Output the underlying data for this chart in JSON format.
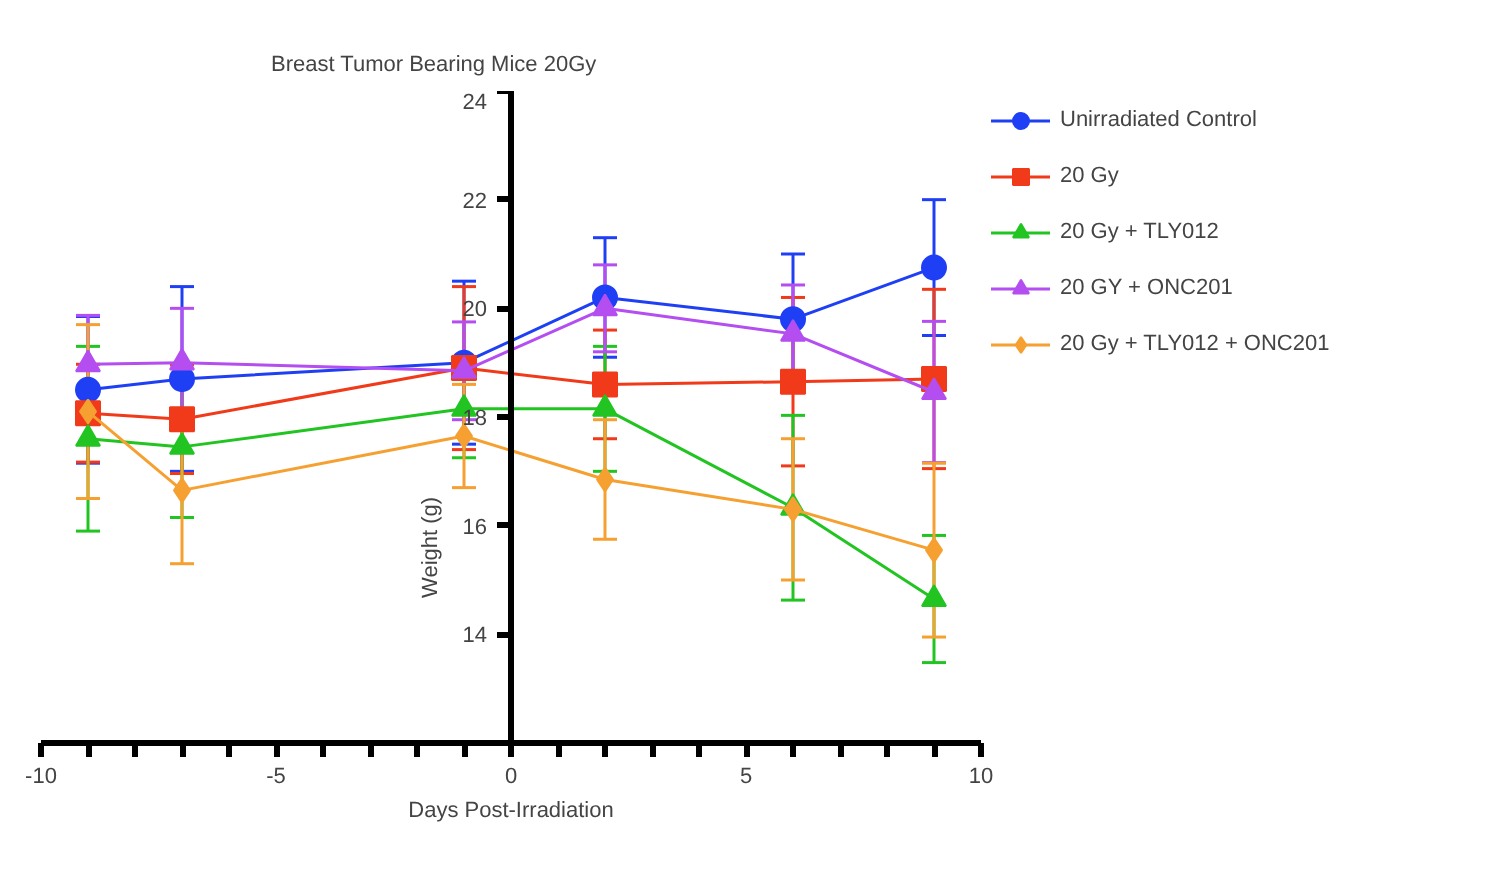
{
  "chart_data": {
    "type": "line",
    "title": "Breast Tumor Bearing Mice 20Gy",
    "xlabel": "Days Post-Irradiation",
    "ylabel": "Weight (g)",
    "x": [
      -9,
      -7,
      -1,
      2,
      6,
      9
    ],
    "series": [
      {
        "name": "Unirradiated Control",
        "color": "#1f3ff5",
        "marker": "circle",
        "values": [
          18.5,
          18.7,
          19.0,
          20.2,
          19.8,
          20.75
        ],
        "errors": [
          1.35,
          1.7,
          1.5,
          1.1,
          1.2,
          1.25
        ]
      },
      {
        "name": "20 Gy",
        "color": "#f03a1a",
        "marker": "square",
        "values": [
          18.07,
          17.96,
          18.9,
          18.6,
          18.65,
          18.7
        ],
        "errors": [
          0.9,
          1.0,
          1.5,
          1.0,
          1.55,
          1.65
        ]
      },
      {
        "name": "20 Gy + TLY012",
        "color": "#22c422",
        "marker": "triangle",
        "values": [
          17.6,
          17.45,
          18.15,
          18.15,
          16.33,
          14.65
        ],
        "errors": [
          1.7,
          1.3,
          0.9,
          1.15,
          1.7,
          1.17
        ]
      },
      {
        "name": "20 GY + ONC201",
        "color": "#b44ef0",
        "marker": "triangle",
        "values": [
          18.97,
          19.0,
          18.85,
          20.0,
          19.53,
          18.46
        ],
        "errors": [
          0.9,
          1.0,
          0.9,
          0.8,
          0.9,
          1.3
        ]
      },
      {
        "name": "20 Gy + TLY012 + ONC201",
        "color": "#f5a030",
        "marker": "diamond",
        "values": [
          18.1,
          16.65,
          17.65,
          16.85,
          16.3,
          15.55
        ],
        "errors": [
          1.6,
          1.35,
          0.95,
          1.1,
          1.3,
          1.6
        ]
      }
    ],
    "xlim": [
      -10,
      10
    ],
    "xticks": [
      -10,
      {
        "value": -9,
        "label": null
      },
      {
        "value": -8,
        "label": null
      },
      {
        "value": -7,
        "label": null
      },
      {
        "value": -6,
        "label": null
      },
      -5,
      {
        "value": -4,
        "label": null
      },
      {
        "value": -3,
        "label": null
      },
      {
        "value": -2,
        "label": null
      },
      {
        "value": -1,
        "label": null
      },
      0,
      {
        "value": 1,
        "label": null
      },
      {
        "value": 2,
        "label": null
      },
      {
        "value": 3,
        "label": null
      },
      {
        "value": 4,
        "label": null
      },
      5,
      {
        "value": 6,
        "label": null
      },
      {
        "value": 7,
        "label": null
      },
      {
        "value": 8,
        "label": null
      },
      {
        "value": 9,
        "label": null
      },
      10
    ],
    "ylim": [
      12,
      24
    ],
    "yticks": [
      14,
      16,
      18,
      20,
      22,
      24
    ],
    "grid": false,
    "legend": "top right",
    "line_style": "solid"
  }
}
